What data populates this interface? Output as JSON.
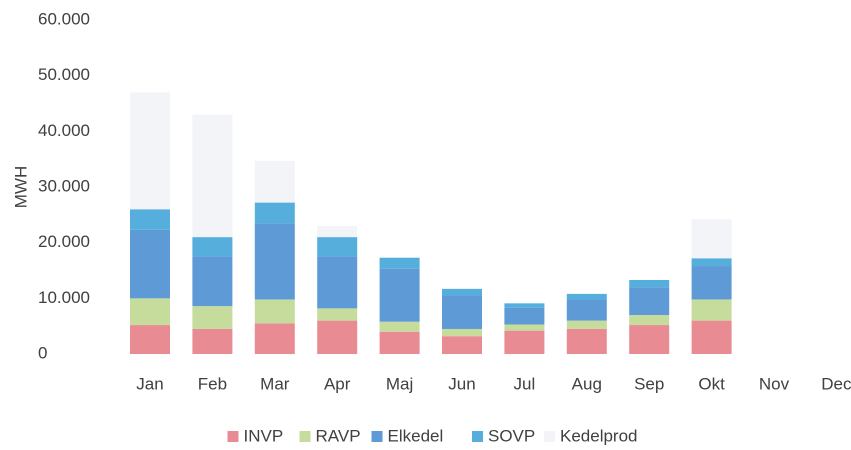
{
  "chart_data": {
    "type": "bar",
    "stacked": true,
    "y_label": "MWH",
    "categories": [
      "Jan",
      "Feb",
      "Mar",
      "Apr",
      "Maj",
      "Jun",
      "Jul",
      "Aug",
      "Sep",
      "Okt",
      "Nov",
      "Dec"
    ],
    "series": [
      {
        "name": "INVP",
        "color": "#e98b93",
        "values": [
          5200,
          4500,
          5500,
          6000,
          4000,
          3200,
          4200,
          4500,
          5200,
          6000,
          null,
          null
        ]
      },
      {
        "name": "RAVP",
        "color": "#c6dc9c",
        "values": [
          4800,
          4100,
          4300,
          2200,
          1800,
          1300,
          1100,
          1500,
          1800,
          3800,
          null,
          null
        ]
      },
      {
        "name": "Elkedel",
        "color": "#5d9ad6",
        "values": [
          12300,
          8900,
          13700,
          9300,
          9500,
          6000,
          3000,
          3800,
          5000,
          6000,
          null,
          null
        ]
      },
      {
        "name": "SOVP",
        "color": "#55aedc",
        "values": [
          3700,
          3500,
          3700,
          3500,
          2000,
          1200,
          800,
          1000,
          1300,
          1400,
          null,
          null
        ]
      },
      {
        "name": "Kedelprod",
        "color": "#f2f4f8",
        "values": [
          21000,
          22000,
          7500,
          2000,
          0,
          0,
          0,
          0,
          0,
          7000,
          null,
          null
        ]
      }
    ],
    "ylim": [
      0,
      60000
    ],
    "yticks": [
      0,
      {
        "value": 10000,
        "label": "10.000"
      },
      {
        "value": 20000,
        "label": "20.000"
      },
      {
        "value": 30000,
        "label": "30.000"
      },
      {
        "value": 40000,
        "label": "40.000"
      },
      {
        "value": 50000,
        "label": "50.000"
      },
      {
        "value": 60000,
        "label": "60.000"
      }
    ],
    "grid": false,
    "legend": "bottom"
  }
}
